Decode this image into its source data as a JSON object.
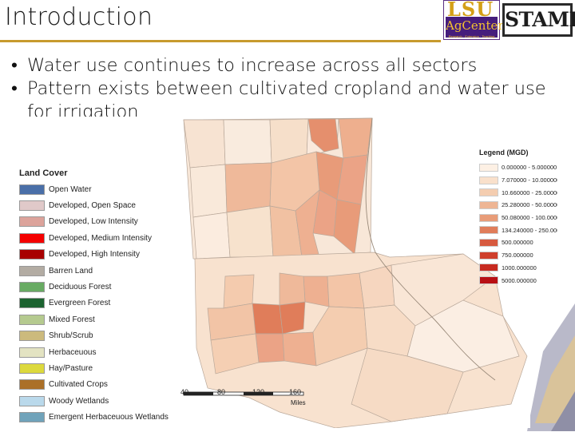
{
  "slide": {
    "title": "Introduction",
    "bullets": [
      "Water use continues to increase across all sectors",
      "Pattern exists between cultivated cropland and water use for irrigation"
    ],
    "bullet_symbol": "•",
    "accent_color": "#c79a2e"
  },
  "logos": {
    "lsu_top": "LSU",
    "lsu_bottom": "AgCenter",
    "lsu_sub": "Research · Extension · Teaching",
    "stamp": "STAMP"
  },
  "land_cover_legend": {
    "title": "Land Cover",
    "items": [
      {
        "label": "Open Water",
        "color": "#4a6fa8"
      },
      {
        "label": "Developed, Open Space",
        "color": "#e0c9c9"
      },
      {
        "label": "Developed, Low Intensity",
        "color": "#dca39b"
      },
      {
        "label": "Developed, Medium Intensity",
        "color": "#f40000"
      },
      {
        "label": "Developed, High Intensity",
        "color": "#a80000"
      },
      {
        "label": "Barren Land",
        "color": "#b3aca3"
      },
      {
        "label": "Deciduous Forest",
        "color": "#68ab63"
      },
      {
        "label": "Evergreen Forest",
        "color": "#1c6330"
      },
      {
        "label": "Mixed Forest",
        "color": "#b5ca8f"
      },
      {
        "label": "Shrub/Scrub",
        "color": "#ccba7d"
      },
      {
        "label": "Herbaceuous",
        "color": "#e3e3c2"
      },
      {
        "label": "Hay/Pasture",
        "color": "#dcd93d"
      },
      {
        "label": "Cultivated Crops",
        "color": "#ab7028"
      },
      {
        "label": "Woody Wetlands",
        "color": "#bad9eb"
      },
      {
        "label": "Emergent Herbaceuous Wetlands",
        "color": "#70a3ba"
      }
    ]
  },
  "water_use_legend": {
    "title": "Legend (MGD)",
    "items": [
      {
        "label": "0.000000 - 5.000000",
        "color": "#fdf0e4"
      },
      {
        "label": "7.070000 - 10.000000",
        "color": "#f9e0cb"
      },
      {
        "label": "10.660000 - 25.000000",
        "color": "#f4cdb0"
      },
      {
        "label": "25.280000 - 50.000000",
        "color": "#eeb594"
      },
      {
        "label": "50.080000 - 100.000000",
        "color": "#e89c78"
      },
      {
        "label": "134.240000 - 250.000000",
        "color": "#e07d5a"
      },
      {
        "label": "500.000000",
        "color": "#d75a3f"
      },
      {
        "label": "750.000000",
        "color": "#cf3f2c"
      },
      {
        "label": "1000.000000",
        "color": "#c72a20"
      },
      {
        "label": "5000.000000",
        "color": "#b80f14"
      }
    ]
  },
  "scale_bar": {
    "ticks": [
      "40",
      "80",
      "120",
      "160"
    ],
    "units": "Miles"
  }
}
